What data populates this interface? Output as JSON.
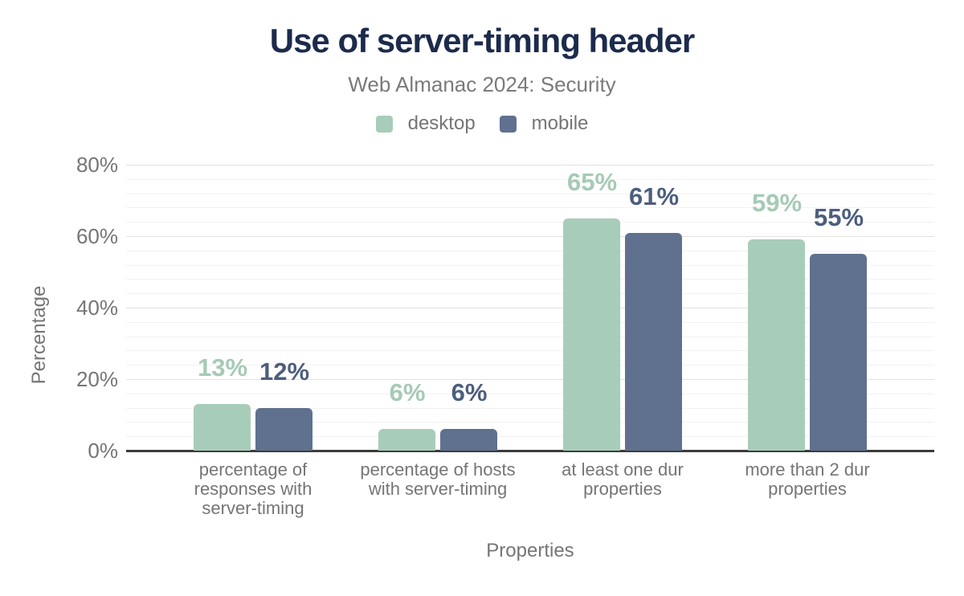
{
  "header": {
    "title": "Use of server-timing header",
    "subtitle": "Web Almanac 2024: Security"
  },
  "legend": {
    "items": [
      {
        "label": "desktop",
        "color": "#a8ccba"
      },
      {
        "label": "mobile",
        "color": "#5f718e"
      }
    ]
  },
  "chart_data": {
    "type": "bar",
    "title": "Use of server-timing header",
    "subtitle": "Web Almanac 2024: Security",
    "categories": [
      "percentage of responses with server-timing",
      "percentage of hosts with server-timing",
      "at least one dur properties",
      "more than 2 dur properties"
    ],
    "categories_wrapped": [
      "percentage of\nresponses with\nserver-timing",
      "percentage of hosts\nwith server-timing",
      "at least one dur\nproperties",
      "more than 2 dur\nproperties"
    ],
    "series": [
      {
        "name": "desktop",
        "color": "#a8ccba",
        "label_color": "#a5cab6",
        "values": [
          13,
          6,
          65,
          59
        ],
        "value_labels": [
          "13%",
          "6%",
          "65%",
          "59%"
        ]
      },
      {
        "name": "mobile",
        "color": "#5f718e",
        "label_color": "#4d5e7d",
        "values": [
          12,
          6,
          61,
          55
        ],
        "value_labels": [
          "12%",
          "6%",
          "61%",
          "55%"
        ]
      }
    ],
    "xlabel": "Properties",
    "ylabel": "Percentage",
    "ylim": [
      0,
      80
    ],
    "yticks": [
      {
        "value": 0,
        "label": "0%"
      },
      {
        "value": 20,
        "label": "20%"
      },
      {
        "value": 40,
        "label": "40%"
      },
      {
        "value": 60,
        "label": "60%"
      },
      {
        "value": 80,
        "label": "80%"
      }
    ],
    "grid": {
      "orientation": "horizontal",
      "minor_step": 4,
      "major_step": 20
    },
    "legend_position": "top"
  },
  "colors": {
    "title": "#1c2b4c",
    "muted_text": "#757575",
    "axis_line": "#3c3c3c",
    "gridline_major": "#e2e2e2",
    "gridline_minor": "#f2f2f2",
    "background": "#ffffff"
  }
}
